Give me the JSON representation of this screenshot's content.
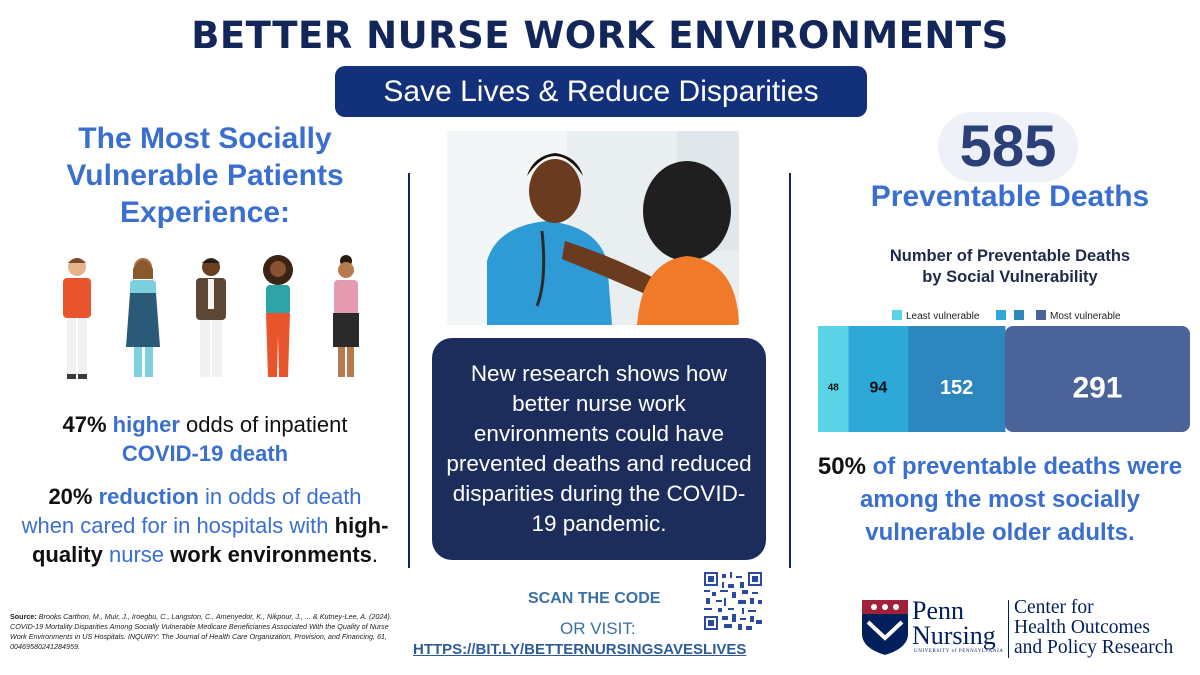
{
  "header": {
    "title": "BETTER NURSE WORK ENVIRONMENTS",
    "subtitle": "Save Lives & Reduce Disparities"
  },
  "left": {
    "heading": "The Most Socially Vulnerable Patients Experience:",
    "stat1": {
      "pct": "47%",
      "emph": "higher",
      "text_a": "odds of inpatient",
      "text_b": "COVID-19 death"
    },
    "stat2": {
      "pct": "20%",
      "emph": "reduction",
      "text_a": "in odds of death when cared for in hospitals with",
      "bold_a": "high-quality",
      "text_b": "nurse",
      "bold_b": "work environments",
      "end": "."
    },
    "source_label": "Source:",
    "source_text": "Brooks Carthon, M., Muir, J., Iroegbu, C., Langston, C., Amenyedor, K., Nikpour, J., ... & Kutney-Lee, A. (2024). COVID-19 Mortality Disparities Among Socially Vulnerable Medicare Beneficiaries Associated With the Quality of Nurse Work Environments in US Hospitals. INQUIRY: The Journal of Health Care Organization, Provision, and Financing, 61, 00469580241284959."
  },
  "middle": {
    "research_text": "New research shows how better nurse work environments could have prevented deaths and reduced disparities during the COVID-19 pandemic.",
    "scan_label": "SCAN THE CODE",
    "or_visit": "OR VISIT:",
    "link": "HTTPS://BIT.LY/BETTERNURSINGSAVESLIVES"
  },
  "right": {
    "big_number": "585",
    "big_label": "Preventable Deaths",
    "chart_title_1": "Number of Preventable Deaths",
    "chart_title_2": "by Social Vulnerability",
    "conclusion_pct": "50%",
    "conclusion_text": "of preventable deaths were among the most socially vulnerable older adults."
  },
  "logos": {
    "penn_word_1": "Penn",
    "penn_word_2": "Nursing",
    "penn_sub": "UNIVERSITY of PENNSYLVANIA",
    "chop_1": "Center for",
    "chop_2": "Health Outcomes",
    "chop_3": "and Policy Research"
  },
  "chart_data": {
    "type": "bar",
    "orientation": "horizontal-stacked",
    "title": "Number of Preventable Deaths by Social Vulnerability",
    "legend": [
      "Least vulnerable",
      "",
      "",
      "Most vulnerable"
    ],
    "values": [
      48,
      94,
      152,
      291
    ],
    "colors": [
      "#5ad3e6",
      "#2ea8d6",
      "#2d86be",
      "#4a6499"
    ],
    "label_colors": [
      "#111111",
      "#111111",
      "#ffffff",
      "#ffffff"
    ],
    "xlabel": "",
    "ylabel": ""
  }
}
